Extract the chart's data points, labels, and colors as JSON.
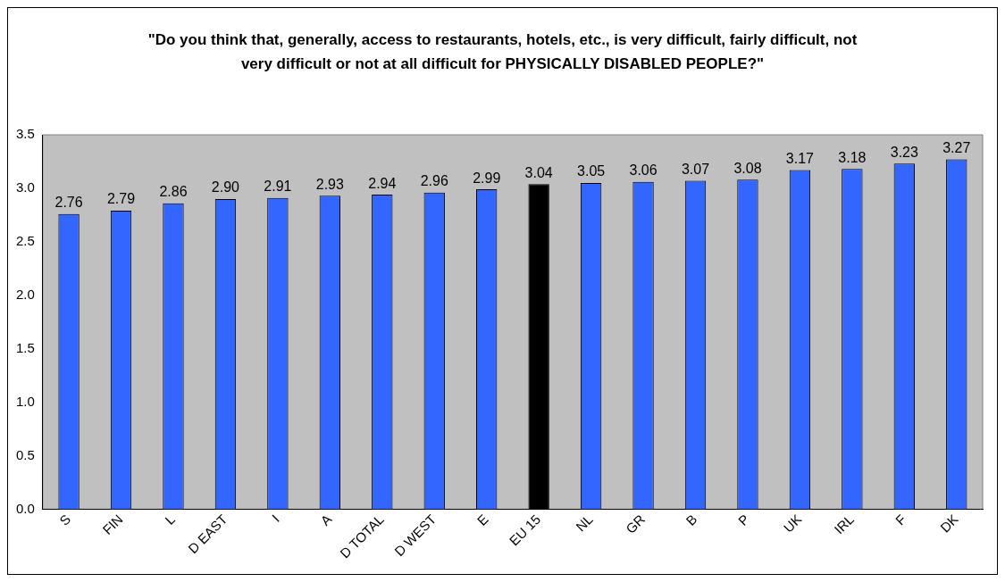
{
  "chart_data": {
    "type": "bar",
    "title": "\"Do you think that, generally, access to restaurants, hotels, etc., is very difficult, fairly difficult, not very difficult or not at all difficult for PHYSICALLY DISABLED PEOPLE?\"",
    "categories": [
      "S",
      "FIN",
      "L",
      "D EAST",
      "I",
      "A",
      "D TOTAL",
      "D WEST",
      "E",
      "EU 15",
      "NL",
      "GR",
      "B",
      "P",
      "UK",
      "IRL",
      "F",
      "DK"
    ],
    "values": [
      2.76,
      2.79,
      2.86,
      2.9,
      2.91,
      2.93,
      2.94,
      2.96,
      2.99,
      3.04,
      3.05,
      3.06,
      3.07,
      3.08,
      3.17,
      3.18,
      3.23,
      3.27
    ],
    "value_labels": [
      "2.76",
      "2.79",
      "2.86",
      "2.90",
      "2.91",
      "2.93",
      "2.94",
      "2.96",
      "2.99",
      "3.04",
      "3.05",
      "3.06",
      "3.07",
      "3.08",
      "3.17",
      "3.18",
      "3.23",
      "3.27"
    ],
    "colors": [
      "#3366ff",
      "#3366ff",
      "#3366ff",
      "#3366ff",
      "#3366ff",
      "#3366ff",
      "#3366ff",
      "#3366ff",
      "#3366ff",
      "#000000",
      "#3366ff",
      "#3366ff",
      "#3366ff",
      "#3366ff",
      "#3366ff",
      "#3366ff",
      "#3366ff",
      "#3366ff"
    ],
    "ylim": [
      0,
      3.5
    ],
    "yticks": [
      {
        "value": 0,
        "label": "0.0"
      },
      {
        "value": 0.5,
        "label": "0.5"
      },
      {
        "value": 1,
        "label": "1.0"
      },
      {
        "value": 1.5,
        "label": "1.5"
      },
      {
        "value": 2,
        "label": "2.0"
      },
      {
        "value": 2.5,
        "label": "2.5"
      },
      {
        "value": 3,
        "label": "3.0"
      },
      {
        "value": 3.5,
        "label": "3.5"
      }
    ],
    "grid": false,
    "legend": false
  }
}
